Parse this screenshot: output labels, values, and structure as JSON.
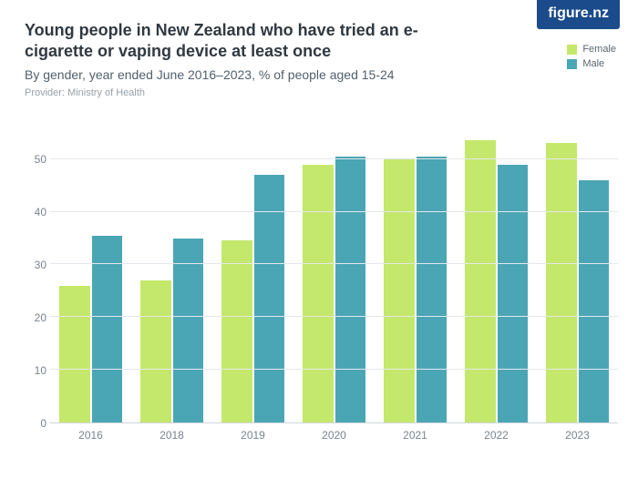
{
  "logo": {
    "text": "figure.nz",
    "bg": "#1b4b8a",
    "fg": "#ffffff"
  },
  "header": {
    "title": "Young people in New Zealand who have tried an e-cigarette or vaping device at least once",
    "subtitle": "By gender, year ended June 2016–2023, % of people aged 15-24",
    "provider": "Provider: Ministry of Health"
  },
  "legend": {
    "items": [
      {
        "label": "Female",
        "color": "#c4e86b"
      },
      {
        "label": "Male",
        "color": "#4aa6b5"
      }
    ]
  },
  "chart": {
    "type": "bar",
    "y_max": 56,
    "y_ticks": [
      0,
      10,
      20,
      30,
      40,
      50
    ],
    "grid_color": "#e4e8ec",
    "axis_color": "#cdd4da",
    "tick_label_color": "#768491",
    "tick_fontsize": 12,
    "background_color": "#ffffff",
    "series": [
      {
        "name": "Female",
        "color": "#c4e86b"
      },
      {
        "name": "Male",
        "color": "#4aa6b5"
      }
    ],
    "categories": [
      "2016",
      "2018",
      "2019",
      "2020",
      "2021",
      "2022",
      "2023"
    ],
    "data": {
      "Female": [
        26,
        27,
        34.5,
        49,
        50,
        53.5,
        53
      ],
      "Male": [
        35.5,
        35,
        47,
        50.5,
        50.5,
        49,
        46
      ]
    }
  }
}
